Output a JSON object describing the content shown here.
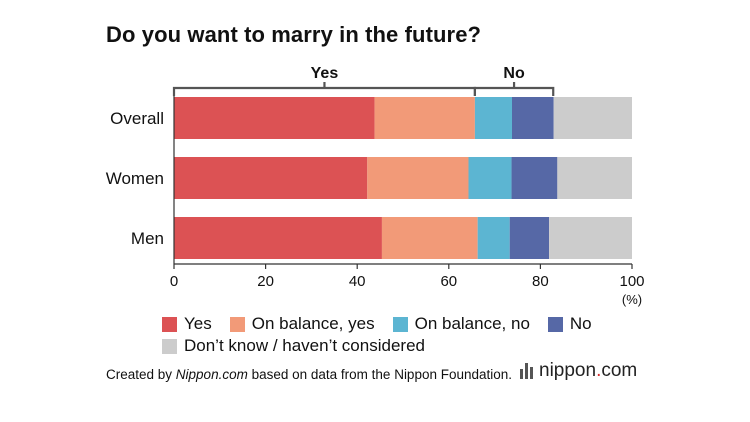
{
  "chart_data": {
    "type": "bar",
    "orientation": "horizontal",
    "stacked": true,
    "title": "Do you want to marry in the future?",
    "categories": [
      "Overall",
      "Women",
      "Men"
    ],
    "series": [
      {
        "name": "Yes",
        "color": "#dc5254",
        "values": [
          43.8,
          42.2,
          45.4
        ]
      },
      {
        "name": "On balance, yes",
        "color": "#f29a78",
        "values": [
          21.9,
          22.1,
          20.9
        ]
      },
      {
        "name": "On balance, no",
        "color": "#5cb5d2",
        "values": [
          8.1,
          9.4,
          7.0
        ]
      },
      {
        "name": "No",
        "color": "#5668a6",
        "values": [
          9.1,
          10.0,
          8.6
        ]
      },
      {
        "name": "Don’t know / haven’t considered",
        "color": "#cccccc",
        "values": [
          17.1,
          16.3,
          18.1
        ]
      }
    ],
    "xlim": [
      0,
      100
    ],
    "xticks": [
      "0",
      "20",
      "40",
      "60",
      "80",
      "100"
    ],
    "xunit": "(%)",
    "brackets": [
      {
        "label": "Yes",
        "from": 0,
        "to": 65.7
      },
      {
        "label": "No",
        "from": 65.7,
        "to": 82.8
      }
    ],
    "legend_position": "bottom"
  },
  "footer": {
    "source_prefix": "Created by ",
    "source_site": "Nippon.com",
    "source_suffix": " based on data from the Nippon Foundation.",
    "logo_main": "nippon",
    "logo_dot": ".",
    "logo_tld": "com"
  }
}
